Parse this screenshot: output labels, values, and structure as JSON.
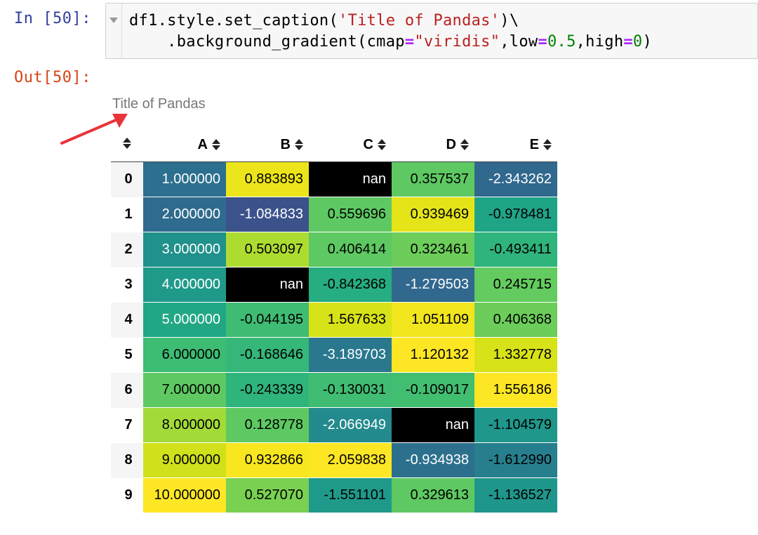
{
  "prompts": {
    "in_label": "In [50]:",
    "out_label": "Out[50]:"
  },
  "code": {
    "line1": {
      "a": "df1.style.set_caption(",
      "str": "'Title of Pandas'",
      "b": ")\\"
    },
    "line2": {
      "a": "    .background_gradient(cmap",
      "eq1": "=",
      "str": "\"viridis\"",
      "b": ",low",
      "eq2": "=",
      "num1": "0.5",
      "c": ",high",
      "eq3": "=",
      "num2": "0",
      "d": ")"
    }
  },
  "output": {
    "caption": "Title of Pandas",
    "annotation_arrow_color": "#e8333a",
    "table": {
      "columns": [
        "A",
        "B",
        "C",
        "D",
        "E"
      ],
      "index": [
        "0",
        "1",
        "2",
        "3",
        "4",
        "5",
        "6",
        "7",
        "8",
        "9"
      ],
      "rows": [
        [
          {
            "v": "1.000000",
            "bg": "#2c6f8e",
            "fg": "light"
          },
          {
            "v": "0.883893",
            "bg": "#ece51b",
            "fg": "dark"
          },
          {
            "v": "nan",
            "bg": "#000000",
            "fg": "light"
          },
          {
            "v": "0.357537",
            "bg": "#5ec962",
            "fg": "dark"
          },
          {
            "v": "-2.343262",
            "bg": "#31688e",
            "fg": "light"
          }
        ],
        [
          {
            "v": "2.000000",
            "bg": "#2f6b8e",
            "fg": "light"
          },
          {
            "v": "-1.084833",
            "bg": "#3b528b",
            "fg": "light"
          },
          {
            "v": "0.559696",
            "bg": "#5ec962",
            "fg": "dark"
          },
          {
            "v": "0.939469",
            "bg": "#e5e419",
            "fg": "dark"
          },
          {
            "v": "-0.978481",
            "bg": "#20a486",
            "fg": "dark"
          }
        ],
        [
          {
            "v": "3.000000",
            "bg": "#21918c",
            "fg": "light"
          },
          {
            "v": "0.503097",
            "bg": "#addc30",
            "fg": "dark"
          },
          {
            "v": "0.406414",
            "bg": "#5ec962",
            "fg": "dark"
          },
          {
            "v": "0.323461",
            "bg": "#6ccd5a",
            "fg": "dark"
          },
          {
            "v": "-0.493411",
            "bg": "#2fb47c",
            "fg": "dark"
          }
        ],
        [
          {
            "v": "4.000000",
            "bg": "#1f9a8a",
            "fg": "light"
          },
          {
            "v": "nan",
            "bg": "#000000",
            "fg": "light"
          },
          {
            "v": "-0.842368",
            "bg": "#26ad81",
            "fg": "dark"
          },
          {
            "v": "-1.279503",
            "bg": "#31688e",
            "fg": "light"
          },
          {
            "v": "0.245715",
            "bg": "#63cb5f",
            "fg": "dark"
          }
        ],
        [
          {
            "v": "5.000000",
            "bg": "#22a785",
            "fg": "light"
          },
          {
            "v": "-0.044195",
            "bg": "#3fbc73",
            "fg": "dark"
          },
          {
            "v": "1.567633",
            "bg": "#d8e219",
            "fg": "dark"
          },
          {
            "v": "1.051109",
            "bg": "#f1e51d",
            "fg": "dark"
          },
          {
            "v": "0.406368",
            "bg": "#6ccd5a",
            "fg": "dark"
          }
        ],
        [
          {
            "v": "6.000000",
            "bg": "#3dbc74",
            "fg": "dark"
          },
          {
            "v": "-0.168646",
            "bg": "#35b779",
            "fg": "dark"
          },
          {
            "v": "-3.189703",
            "bg": "#2a788e",
            "fg": "light"
          },
          {
            "v": "1.120132",
            "bg": "#fde725",
            "fg": "dark"
          },
          {
            "v": "1.332778",
            "bg": "#d8e219",
            "fg": "dark"
          }
        ],
        [
          {
            "v": "7.000000",
            "bg": "#5ec962",
            "fg": "dark"
          },
          {
            "v": "-0.243339",
            "bg": "#2fb47c",
            "fg": "dark"
          },
          {
            "v": "-0.130031",
            "bg": "#40bd72",
            "fg": "dark"
          },
          {
            "v": "-0.109017",
            "bg": "#42be71",
            "fg": "dark"
          },
          {
            "v": "1.556186",
            "bg": "#fde725",
            "fg": "dark"
          }
        ],
        [
          {
            "v": "8.000000",
            "bg": "#a2da37",
            "fg": "dark"
          },
          {
            "v": "0.128778",
            "bg": "#5ec962",
            "fg": "dark"
          },
          {
            "v": "-2.066949",
            "bg": "#238a8d",
            "fg": "light"
          },
          {
            "v": "nan",
            "bg": "#000000",
            "fg": "light"
          },
          {
            "v": "-1.104579",
            "bg": "#1f978b",
            "fg": "dark"
          }
        ],
        [
          {
            "v": "9.000000",
            "bg": "#d0e11c",
            "fg": "dark"
          },
          {
            "v": "0.932866",
            "bg": "#f7e620",
            "fg": "dark"
          },
          {
            "v": "2.059838",
            "bg": "#fde725",
            "fg": "dark"
          },
          {
            "v": "-0.934938",
            "bg": "#2d708e",
            "fg": "light"
          },
          {
            "v": "-1.612990",
            "bg": "#277f8e",
            "fg": "dark"
          }
        ],
        [
          {
            "v": "10.000000",
            "bg": "#fde725",
            "fg": "dark"
          },
          {
            "v": "0.527070",
            "bg": "#7ad151",
            "fg": "dark"
          },
          {
            "v": "-1.551101",
            "bg": "#1f9a8a",
            "fg": "dark"
          },
          {
            "v": "0.329613",
            "bg": "#5ec962",
            "fg": "dark"
          },
          {
            "v": "-1.136527",
            "bg": "#1f968b",
            "fg": "dark"
          }
        ]
      ]
    }
  }
}
